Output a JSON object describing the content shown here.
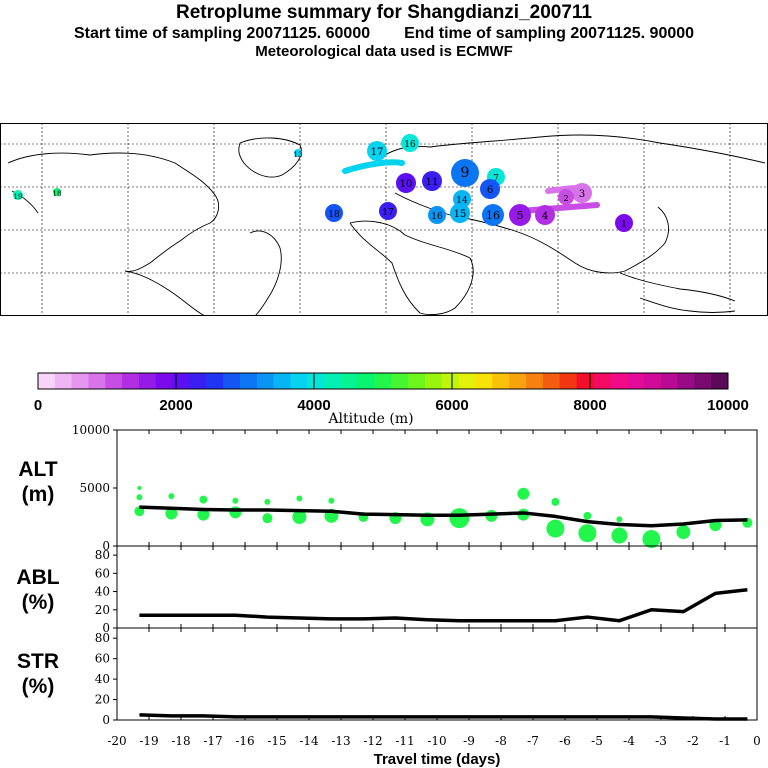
{
  "header": {
    "title": "Retroplume summary for Shangdianzi_200711",
    "start": "Start time of sampling 20071125. 60000",
    "end": "End time of sampling 20071125. 90000",
    "met": "Meteorological data used is ECMWF"
  },
  "colorbar": {
    "label": "Altitude (m)",
    "ticks": [
      "0",
      "2000",
      "4000",
      "6000",
      "8000",
      "10000"
    ],
    "colors": [
      "#f6d5f8",
      "#efb6f4",
      "#e596ef",
      "#d873ea",
      "#c84de5",
      "#b12ee3",
      "#951ae5",
      "#7a0aec",
      "#5a10f0",
      "#3a1ef2",
      "#2035f4",
      "#1555f4",
      "#0c75f4",
      "#0a95f4",
      "#08b5f4",
      "#05d3f0",
      "#05e6d8",
      "#05eeb5",
      "#06f392",
      "#0af56f",
      "#22f64d",
      "#45f630",
      "#6ef61c",
      "#98f60e",
      "#c0f40a",
      "#e3f00a",
      "#f8e20a",
      "#f8c20a",
      "#f8a20e",
      "#f68010",
      "#f45c12",
      "#f23612",
      "#f20e2a",
      "#f50a62",
      "#f20a86",
      "#e60a98",
      "#d20a9a",
      "#b80a94",
      "#980a86",
      "#7a0a70",
      "#5a0a58"
    ]
  },
  "map": {
    "markers": [
      {
        "label": "19",
        "color": "#05eeb5"
      },
      {
        "label": "18",
        "color": "#0af56f"
      },
      {
        "label": "13",
        "color": "#05d3f0"
      },
      {
        "label": "17",
        "color": "#05d3f0"
      },
      {
        "label": "16",
        "color": "#05e6d8"
      },
      {
        "label": "18",
        "color": "#1555f4"
      },
      {
        "label": "17",
        "color": "#3a1ef2"
      },
      {
        "label": "16",
        "color": "#0a95f4"
      },
      {
        "label": "15",
        "color": "#08b5f4"
      },
      {
        "label": "16",
        "color": "#0c75f4"
      },
      {
        "label": "14",
        "color": "#08b5f4"
      },
      {
        "label": "10",
        "color": "#5a10f0"
      },
      {
        "label": "11",
        "color": "#3a1ef2"
      },
      {
        "label": "9",
        "color": "#0c75f4"
      },
      {
        "label": "7",
        "color": "#05e6d8"
      },
      {
        "label": "6",
        "color": "#1555f4"
      },
      {
        "label": "5",
        "color": "#951ae5"
      },
      {
        "label": "4",
        "color": "#b12ee3"
      },
      {
        "label": "3",
        "color": "#d873ea"
      },
      {
        "label": "2",
        "color": "#c84de5"
      },
      {
        "label": "1",
        "color": "#7a0aec"
      }
    ]
  },
  "panels": {
    "alt": {
      "label1": "ALT",
      "label2": "(m)"
    },
    "abl": {
      "label1": "ABL",
      "label2": "(%)"
    },
    "str": {
      "label1": "STR",
      "label2": "(%)"
    }
  },
  "chart_data": [
    {
      "type": "line",
      "title": "ALT (m)",
      "xlabel": "Travel time (days)",
      "ylabel": "ALT (m)",
      "xlim": [
        -20,
        0
      ],
      "ylim": [
        0,
        10000
      ],
      "yticks": [
        "10000",
        "5000",
        "0"
      ],
      "x": [
        -19.3,
        -18.3,
        -17.3,
        -16.3,
        -15.3,
        -14.3,
        -13.3,
        -12.3,
        -11.3,
        -10.3,
        -9.3,
        -8.3,
        -7.3,
        -6.3,
        -5.3,
        -4.3,
        -3.3,
        -2.3,
        -1.3,
        -0.3
      ],
      "values": [
        3350,
        3250,
        3150,
        3100,
        3100,
        3050,
        3000,
        2750,
        2700,
        2650,
        2650,
        2750,
        2850,
        2550,
        2100,
        1850,
        1750,
        1900,
        2200,
        2250
      ],
      "scatter": {
        "x": [
          -19.3,
          -19.3,
          -19.3,
          -18.3,
          -18.3,
          -17.3,
          -17.3,
          -16.3,
          -16.3,
          -15.3,
          -15.3,
          -14.3,
          -14.3,
          -13.3,
          -13.3,
          -12.3,
          -11.3,
          -10.3,
          -9.3,
          -8.3,
          -7.3,
          -7.3,
          -6.3,
          -6.3,
          -5.3,
          -5.3,
          -4.3,
          -4.3,
          -3.3,
          -2.3,
          -1.3,
          -0.3
        ],
        "y": [
          3000,
          4200,
          5000,
          2800,
          4300,
          2700,
          4000,
          2900,
          3900,
          2400,
          3800,
          2500,
          4100,
          2600,
          3900,
          2500,
          2400,
          2300,
          2400,
          2600,
          2700,
          4500,
          1500,
          3800,
          1100,
          2600,
          900,
          2300,
          600,
          1200,
          1800,
          2000
        ],
        "size": [
          5,
          3,
          2,
          6,
          3,
          6,
          4,
          6,
          3,
          5,
          3,
          7,
          3,
          7,
          3,
          5,
          6,
          7,
          10,
          6,
          6,
          6,
          9,
          4,
          9,
          4,
          8,
          3,
          9,
          7,
          6,
          5
        ]
      }
    },
    {
      "type": "line",
      "title": "ABL (%)",
      "xlabel": "Travel time (days)",
      "ylabel": "ABL (%)",
      "xlim": [
        -20,
        0
      ],
      "ylim": [
        0,
        90
      ],
      "yticks": [
        "80",
        "60",
        "40",
        "20",
        "0"
      ],
      "x": [
        -19.3,
        -18.3,
        -17.3,
        -16.3,
        -15.3,
        -14.3,
        -13.3,
        -12.3,
        -11.3,
        -10.3,
        -9.3,
        -8.3,
        -7.3,
        -6.3,
        -5.3,
        -4.3,
        -3.3,
        -2.3,
        -1.3,
        -0.3
      ],
      "values": [
        14,
        14,
        14,
        14,
        12,
        11,
        10,
        10,
        11,
        9,
        8,
        8,
        8,
        8,
        12,
        8,
        20,
        18,
        38,
        42
      ]
    },
    {
      "type": "line",
      "title": "STR (%)",
      "xlabel": "Travel time (days)",
      "ylabel": "STR (%)",
      "xlim": [
        -20,
        0
      ],
      "ylim": [
        0,
        90
      ],
      "yticks": [
        "80",
        "60",
        "40",
        "20",
        "0"
      ],
      "x": [
        -19.3,
        -18.3,
        -17.3,
        -16.3,
        -15.3,
        -14.3,
        -13.3,
        -12.3,
        -11.3,
        -10.3,
        -9.3,
        -8.3,
        -7.3,
        -6.3,
        -5.3,
        -4.3,
        -3.3,
        -2.3,
        -1.3,
        -0.3
      ],
      "values": [
        5,
        4,
        4,
        3,
        3,
        3,
        3,
        3,
        3,
        3,
        3,
        3,
        3,
        3,
        3,
        3,
        3,
        2,
        1,
        1
      ],
      "xticks": [
        "-20",
        "-19",
        "-18",
        "-17",
        "-16",
        "-15",
        "-14",
        "-13",
        "-12",
        "-11",
        "-10",
        "-9",
        "-8",
        "-7",
        "-6",
        "-5",
        "-4",
        "-3",
        "-2",
        "-1",
        "0"
      ]
    }
  ]
}
